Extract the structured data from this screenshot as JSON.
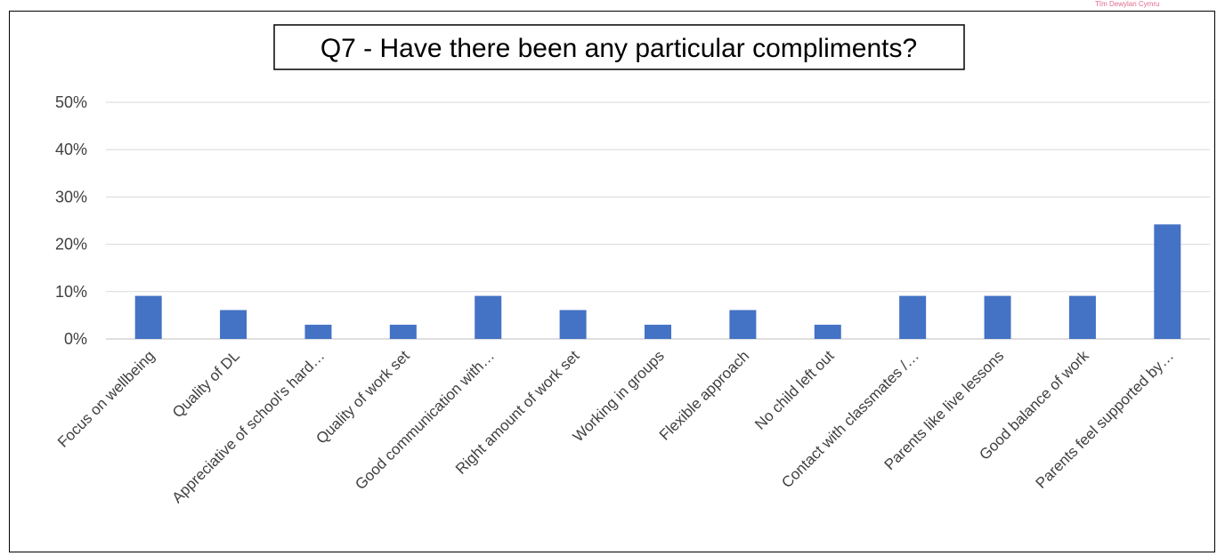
{
  "logo": {
    "text": "Tîm Dewylan Cymru"
  },
  "chart_data": {
    "type": "bar",
    "title": "Q7 - Have there been any particular compliments?",
    "xlabel": "",
    "ylabel": "",
    "ylim": [
      0,
      50
    ],
    "y_ticks": [
      "0%",
      "10%",
      "20%",
      "30%",
      "40%",
      "50%"
    ],
    "grid": true,
    "legend": "none",
    "bar_color": "#4472C4",
    "categories": [
      "Focus on wellbeing",
      "Quality of DL",
      "Appreciative of school's hard…",
      "Quality of work set",
      "Good communication with…",
      "Right amount of work set",
      "Working in groups",
      "Flexible approach",
      "No child left out",
      "Contact with classmates /…",
      "Parents like live lessons",
      "Good balance of work",
      "Parents feel supported by…"
    ],
    "values": [
      9.1,
      6.1,
      3.0,
      3.0,
      9.1,
      6.1,
      3.0,
      6.1,
      3.0,
      9.1,
      9.1,
      9.1,
      24.2
    ]
  }
}
